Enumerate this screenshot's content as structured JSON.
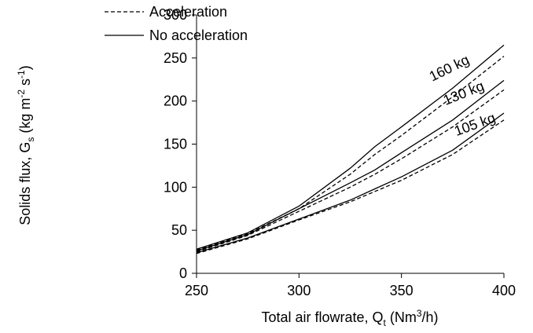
{
  "chart_data": {
    "type": "line",
    "x_label": [
      "Total air flowrate,  Q",
      "t",
      " (Nm",
      "3",
      "/h)"
    ],
    "y_label": [
      "Solids flux,  G",
      "s",
      " (kg m",
      "-2",
      " s",
      "-1",
      ")"
    ],
    "legend": {
      "acceleration": "Acceleration",
      "no_acceleration": "No acceleration"
    },
    "x": [
      250,
      275,
      300,
      325,
      337,
      350,
      375,
      400
    ],
    "series": [
      {
        "name": "160 kg",
        "color": "#000000",
        "no_acceleration": [
          28,
          47,
          78,
          122,
          147,
          170,
          215,
          265
        ],
        "acceleration": [
          27,
          46,
          75,
          115,
          138,
          160,
          205,
          252
        ]
      },
      {
        "name": "130 kg",
        "color": "#000000",
        "no_acceleration": [
          26,
          45,
          75,
          105,
          120,
          140,
          178,
          224
        ],
        "acceleration": [
          25,
          44,
          72,
          100,
          115,
          133,
          170,
          213
        ]
      },
      {
        "name": "105 kg",
        "color": "#000000",
        "no_acceleration": [
          24,
          41,
          63,
          85,
          98,
          112,
          143,
          186
        ],
        "acceleration": [
          23,
          40,
          62,
          83,
          95,
          108,
          138,
          178
        ]
      }
    ],
    "xlim": [
      250,
      400
    ],
    "xticks": [
      250,
      300,
      350,
      400
    ],
    "ylim": [
      0,
      300
    ],
    "yticks": [
      0,
      50,
      100,
      150,
      200,
      250,
      300
    ],
    "grid": false
  }
}
